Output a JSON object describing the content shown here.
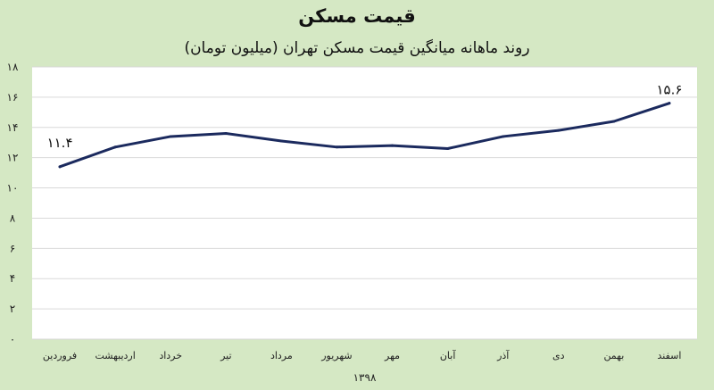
{
  "title": "قیمت مسکن",
  "subtitle": "روند ماهانه میانگین قیمت مسکن تهران (میلیون تومان)",
  "colors": {
    "background": "#d5e8c4",
    "plot_background": "#ffffff",
    "line": "#1b2a5e",
    "grid": "#d9d9d9"
  },
  "chart_data": {
    "type": "line",
    "title": "قیمت مسکن",
    "subtitle": "روند ماهانه میانگین قیمت مسکن تهران (میلیون تومان)",
    "xlabel": "۱۳۹۸",
    "ylabel": "",
    "categories": [
      "فروردین",
      "اردیبهشت",
      "خرداد",
      "تیر",
      "مرداد",
      "شهریور",
      "مهر",
      "آبان",
      "آذر",
      "دی",
      "بهمن",
      "اسفند"
    ],
    "values": [
      11.4,
      12.7,
      13.4,
      13.6,
      13.1,
      12.7,
      12.8,
      12.6,
      13.4,
      13.8,
      14.4,
      15.6
    ],
    "ylim": [
      0,
      18
    ],
    "yticks": [
      "۰",
      "۲",
      "۴",
      "۶",
      "۸",
      "۱۰",
      "۱۲",
      "۱۴",
      "۱۶",
      "۱۸"
    ],
    "data_labels": {
      "first": "۱۱.۴",
      "last": "۱۵.۶"
    },
    "grid": true,
    "legend": "none"
  }
}
